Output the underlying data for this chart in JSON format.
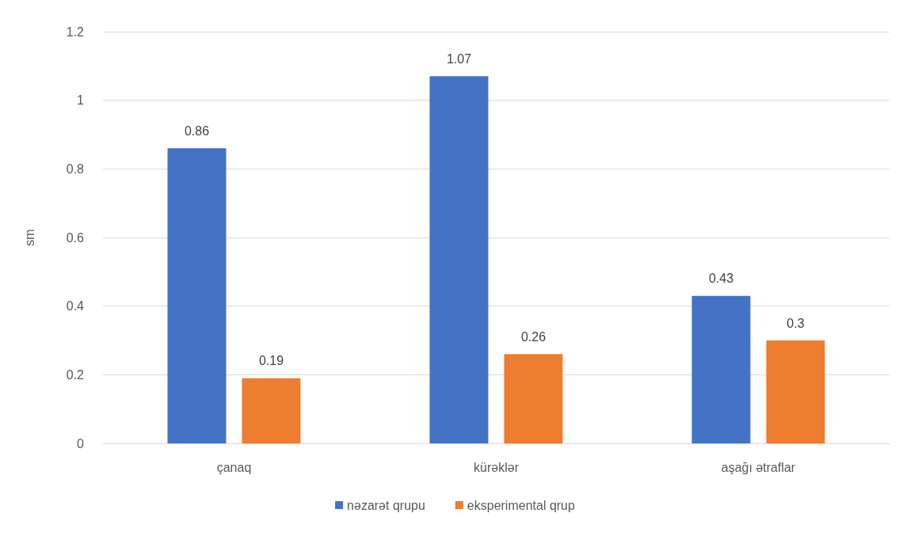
{
  "chart_data": {
    "type": "bar",
    "ylabel": "sm",
    "categories": [
      "çanaq",
      "kürəklər",
      "aşağı ətraflar"
    ],
    "series": [
      {
        "name": "nəzarət qrupu",
        "color": "#4472c4",
        "values": [
          0.86,
          1.07,
          0.43
        ]
      },
      {
        "name": "eksperimental qrup",
        "color": "#ed7d31",
        "values": [
          0.19,
          0.26,
          0.3
        ]
      }
    ],
    "ylim": [
      0,
      1.2
    ],
    "yticks": [
      0,
      0.2,
      0.4,
      0.6,
      0.8,
      1,
      1.2
    ],
    "grid": "y",
    "legend": "bottom",
    "data_labels": true
  }
}
